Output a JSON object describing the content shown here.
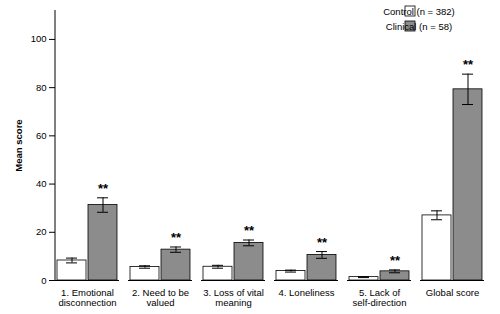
{
  "chart_data": {
    "type": "bar",
    "y_label": "Mean score",
    "categories": [
      "1. Emotional disconnection",
      "2. Need to be valued",
      "3. Loss of vital meaning",
      "4. Loneliness",
      "5. Lack of self-direction",
      "Global score"
    ],
    "series": [
      {
        "name": "Control (n = 382)",
        "color": "#ffffff",
        "values": [
          8.3,
          5.6,
          5.7,
          3.9,
          1.4,
          27.0
        ],
        "ci": [
          [
            7.3,
            9.3
          ],
          [
            5.1,
            6.1
          ],
          [
            5.1,
            6.3
          ],
          [
            3.5,
            4.3
          ],
          [
            1.2,
            1.6
          ],
          [
            25.2,
            28.9
          ]
        ]
      },
      {
        "name": "Clinical (n = 58)",
        "color": "#8c8c8c",
        "values": [
          31.3,
          12.8,
          15.6,
          10.6,
          3.8,
          79.3
        ],
        "ci": [
          [
            28.3,
            34.3
          ],
          [
            11.7,
            13.9
          ],
          [
            14.4,
            16.8
          ],
          [
            9.2,
            12.0
          ],
          [
            3.2,
            4.4
          ],
          [
            73.0,
            85.6
          ]
        ]
      }
    ],
    "annotations": [
      {
        "text": "**",
        "category": "1. Emotional disconnection",
        "series": "Clinical (n = 58)"
      },
      {
        "text": "**",
        "category": "2. Need to be valued",
        "series": "Clinical (n = 58)"
      },
      {
        "text": "**",
        "category": "3. Loss of vital meaning",
        "series": "Clinical (n = 58)"
      },
      {
        "text": "**",
        "category": "4. Loneliness",
        "series": "Clinical (n = 58)"
      },
      {
        "text": "**",
        "category": "5. Lack of self-direction",
        "series": "Clinical (n = 58)"
      },
      {
        "text": "**",
        "category": "Global score",
        "series": "Clinical (n = 58)"
      }
    ],
    "ylim": [
      0,
      112
    ],
    "yticks": [
      0,
      20,
      40,
      60,
      80,
      100
    ],
    "legend": "top-right",
    "grid": false
  }
}
